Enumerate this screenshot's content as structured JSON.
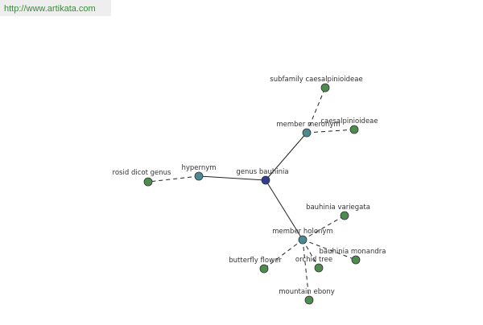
{
  "header": {
    "url": "http://www.artikata.com"
  },
  "nodes": [
    {
      "label": "genus bauhinia"
    },
    {
      "label": "hypernym"
    },
    {
      "label": "rosid dicot genus"
    },
    {
      "label": "member meronym"
    },
    {
      "label": "subfamily caesalpinioideae"
    },
    {
      "label": "caesalpinioideae"
    },
    {
      "label": "member holonym"
    },
    {
      "label": "bauhinia variegata"
    },
    {
      "label": "bauhinia monandra"
    },
    {
      "label": "orchid tree"
    },
    {
      "label": "butterfly flower"
    },
    {
      "label": "mountain ebony"
    }
  ]
}
